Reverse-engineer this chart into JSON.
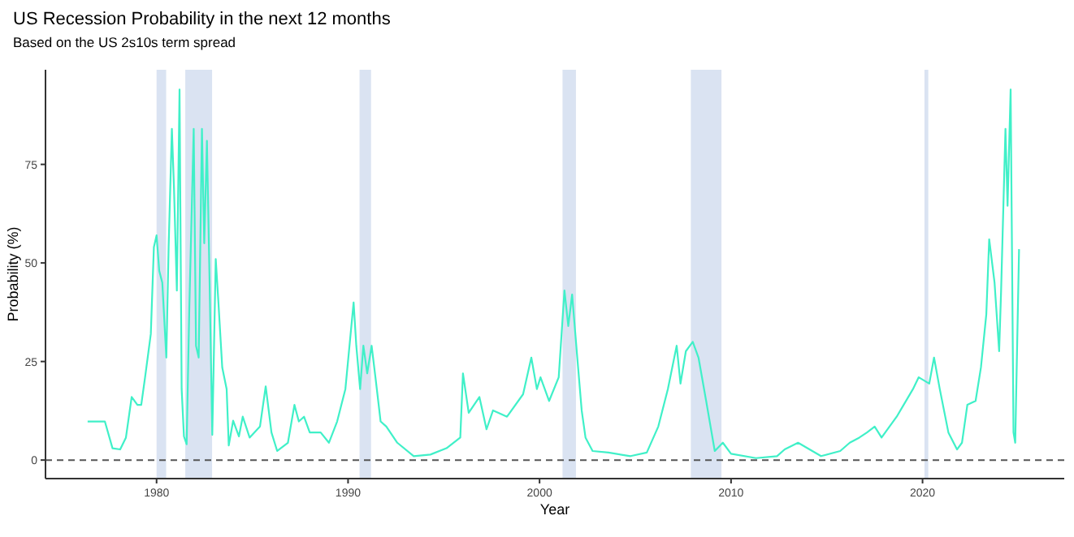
{
  "chart_data": {
    "type": "line",
    "title": "US Recession Probability in the next 12 months",
    "subtitle": "Based on the US 2s10s term spread",
    "xlabel": "Year",
    "ylabel": "Probability (%)",
    "xlim": [
      1974.2,
      2027.4
    ],
    "xticks": [
      1980,
      1990,
      2000,
      2010,
      2020
    ],
    "ylim": [
      -4.7,
      99
    ],
    "yticks": [
      0,
      25,
      50,
      75
    ],
    "grid": false,
    "bands": [
      {
        "axis": "x",
        "from": 1980.0,
        "to": 1980.5,
        "color": "#dae3f2"
      },
      {
        "axis": "x",
        "from": 1981.5,
        "to": 1982.9,
        "color": "#dae3f2"
      },
      {
        "axis": "x",
        "from": 1990.6,
        "to": 1991.2,
        "color": "#dae3f2"
      },
      {
        "axis": "x",
        "from": 2001.2,
        "to": 2001.9,
        "color": "#dae3f2"
      },
      {
        "axis": "x",
        "from": 2007.9,
        "to": 2009.5,
        "color": "#dae3f2"
      },
      {
        "axis": "x",
        "from": 2020.1,
        "to": 2020.3,
        "color": "#dae3f2"
      }
    ],
    "ref_lines": [
      {
        "axis": "y",
        "value": 0,
        "color": "#555555",
        "line_style": "dashed"
      }
    ],
    "series": [
      {
        "color": "#40f0c8",
        "x": [
          1976.4,
          1977.3,
          1977.7,
          1978.1,
          1978.4,
          1978.7,
          1979.0,
          1979.2,
          1979.4,
          1979.7,
          1979.86,
          1980.0,
          1980.14,
          1980.3,
          1980.51,
          1980.63,
          1980.8,
          1980.91,
          1981.06,
          1981.2,
          1981.31,
          1981.43,
          1981.57,
          1981.71,
          1981.94,
          1982.06,
          1982.2,
          1982.37,
          1982.49,
          1982.63,
          1982.77,
          1982.91,
          1983.09,
          1983.23,
          1983.43,
          1983.66,
          1983.77,
          1984.0,
          1984.3,
          1984.5,
          1984.86,
          1985.4,
          1985.7,
          1986.0,
          1986.3,
          1986.86,
          1987.2,
          1987.43,
          1987.7,
          1988.0,
          1988.57,
          1989.0,
          1989.43,
          1989.86,
          1990.29,
          1990.43,
          1990.63,
          1990.8,
          1991.0,
          1991.23,
          1991.43,
          1991.7,
          1992.0,
          1992.57,
          1993.43,
          1994.3,
          1995.14,
          1995.86,
          1996.0,
          1996.3,
          1996.86,
          1997.23,
          1997.57,
          1998.3,
          1999.14,
          1999.57,
          1999.86,
          2000.05,
          2000.5,
          2001.0,
          2001.3,
          2001.5,
          2001.7,
          2001.97,
          2002.2,
          2002.4,
          2002.77,
          2003.6,
          2004.75,
          2005.6,
          2006.2,
          2006.7,
          2007.16,
          2007.36,
          2007.64,
          2008.0,
          2008.3,
          2008.7,
          2009.15,
          2009.57,
          2010.0,
          2011.3,
          2012.4,
          2012.8,
          2013.5,
          2014.1,
          2014.7,
          2015.7,
          2016.2,
          2016.7,
          2017.1,
          2017.5,
          2017.86,
          2018.65,
          2019.5,
          2019.8,
          2020.35,
          2020.6,
          2020.9,
          2021.35,
          2021.8,
          2022.06,
          2022.34,
          2022.77,
          2023.05,
          2023.33,
          2023.48,
          2023.76,
          2024.0,
          2024.1,
          2024.33,
          2024.44,
          2024.6,
          2024.75,
          2024.84,
          2025.04
        ],
        "values": [
          9.8,
          9.8,
          3,
          2.7,
          5.7,
          16,
          14,
          14,
          21,
          32,
          54,
          57,
          48,
          45,
          26,
          54,
          84,
          69,
          43,
          94,
          18,
          6,
          4,
          38.5,
          84,
          29,
          26,
          84,
          55,
          81,
          45,
          6.4,
          51,
          40,
          23.5,
          18,
          3.7,
          10,
          6,
          11,
          5.7,
          8.5,
          18.7,
          7,
          2.3,
          4.4,
          14,
          9.8,
          11,
          7,
          7,
          4.4,
          9.8,
          18,
          40,
          29,
          18,
          29,
          22,
          29,
          21,
          9.8,
          8.5,
          4.4,
          1,
          1.4,
          3,
          5.7,
          22,
          12,
          16,
          7.8,
          12.6,
          11,
          16.7,
          26,
          18,
          21,
          15,
          21,
          43,
          34,
          42,
          26,
          12.6,
          5.7,
          2.3,
          1.9,
          1,
          1.9,
          8.5,
          18,
          29,
          19.4,
          27.6,
          30,
          26,
          15,
          2.3,
          4.4,
          1.6,
          0.5,
          1,
          2.7,
          4.4,
          2.7,
          1,
          2.3,
          4.4,
          5.7,
          7,
          8.5,
          5.7,
          11,
          18,
          21,
          19.4,
          26,
          18,
          7,
          2.7,
          4.4,
          14,
          15,
          23.5,
          37,
          56,
          45,
          27.6,
          42.6,
          84,
          64.5,
          94,
          7,
          4.4,
          53.5
        ]
      }
    ]
  }
}
